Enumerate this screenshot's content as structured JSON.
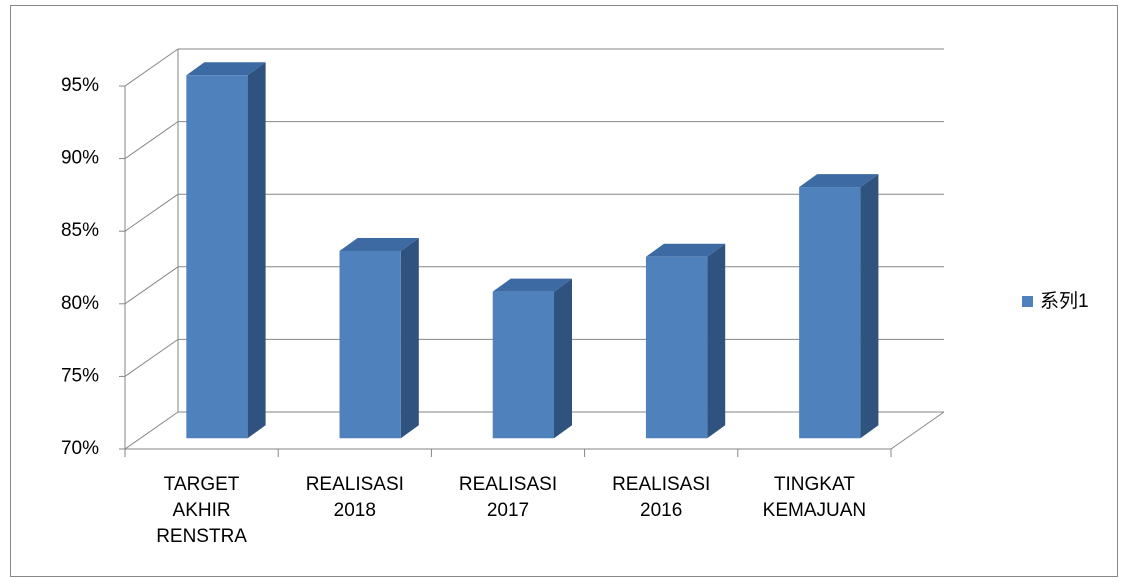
{
  "chart_data": {
    "type": "bar3d",
    "categories": [
      "TARGET AKHIR RENSTRA",
      "REALISASI 2018",
      "REALISASI 2017",
      "REALISASI 2016",
      "TINGKAT KEMAJUAN"
    ],
    "series": [
      {
        "name": "系列1",
        "color": "#4f81bd",
        "values": [
          95,
          82.9,
          80.1,
          82.5,
          87.3
        ]
      }
    ],
    "ylim": [
      70,
      95
    ],
    "yticks": [
      {
        "value": 70,
        "label": "70%"
      },
      {
        "value": 75,
        "label": "75%"
      },
      {
        "value": 80,
        "label": "80%"
      },
      {
        "value": 85,
        "label": "85%"
      },
      {
        "value": 90,
        "label": "90%"
      },
      {
        "value": 95,
        "label": "95%"
      }
    ],
    "grid": true,
    "legend": "right"
  }
}
